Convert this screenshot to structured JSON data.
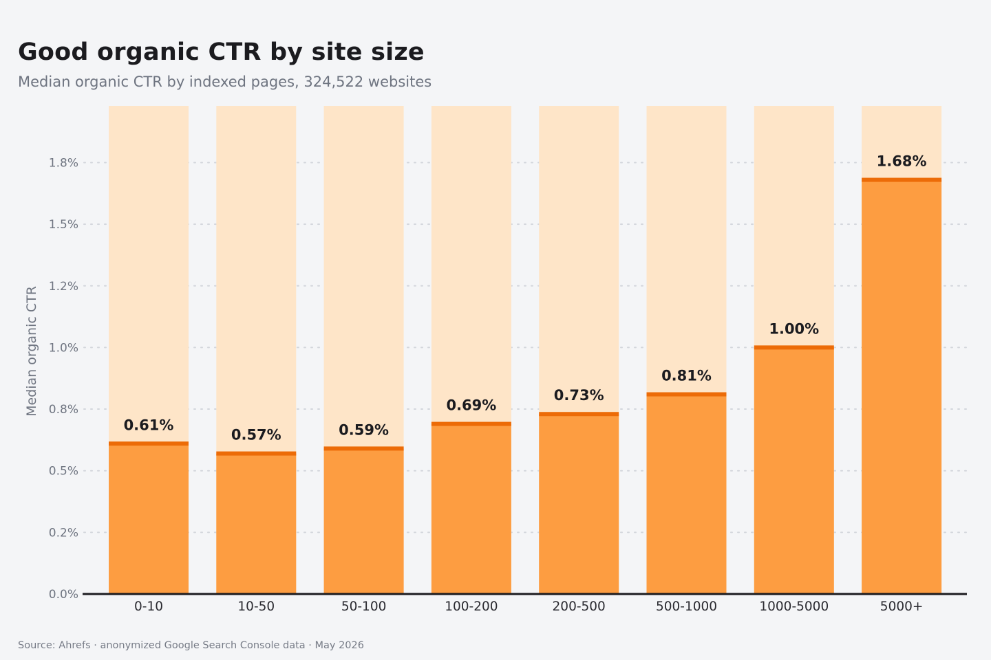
{
  "title": "Good organic CTR by site size",
  "subtitle": "Median organic CTR by indexed pages, 324,522 websites",
  "source": "Source: Ahrefs · anonymized Google Search Console data · May 2026",
  "colors": {
    "background": "#f4f5f7",
    "bar": "#fd9d41",
    "bar_top": "#ec6b07",
    "track": "#fee5c8",
    "grid": "#d3d6dc",
    "axis": "#1b1b1f"
  },
  "chart_data": {
    "type": "bar",
    "title": "Good organic CTR by site size",
    "subtitle": "Median organic CTR by indexed pages, 324,522 websites",
    "xlabel": "",
    "ylabel": "Median organic CTR",
    "categories": [
      "0-10",
      "10-50",
      "50-100",
      "100-200",
      "200-500",
      "500-1000",
      "1000-5000",
      "5000+"
    ],
    "values": [
      0.61,
      0.57,
      0.59,
      0.69,
      0.73,
      0.81,
      1.0,
      1.68
    ],
    "value_labels": [
      "0.61%",
      "0.57%",
      "0.59%",
      "0.69%",
      "0.73%",
      "0.81%",
      "1.00%",
      "1.68%"
    ],
    "y_ticks": [
      0.0,
      0.25,
      0.5,
      0.75,
      1.0,
      1.25,
      1.5,
      1.75
    ],
    "y_tick_labels": [
      "0.0%",
      "0.2%",
      "0.5%",
      "0.8%",
      "1.0%",
      "1.2%",
      "1.5%",
      "1.8%"
    ],
    "ylim": [
      0,
      1.98
    ],
    "grid": true,
    "legend": "none"
  }
}
